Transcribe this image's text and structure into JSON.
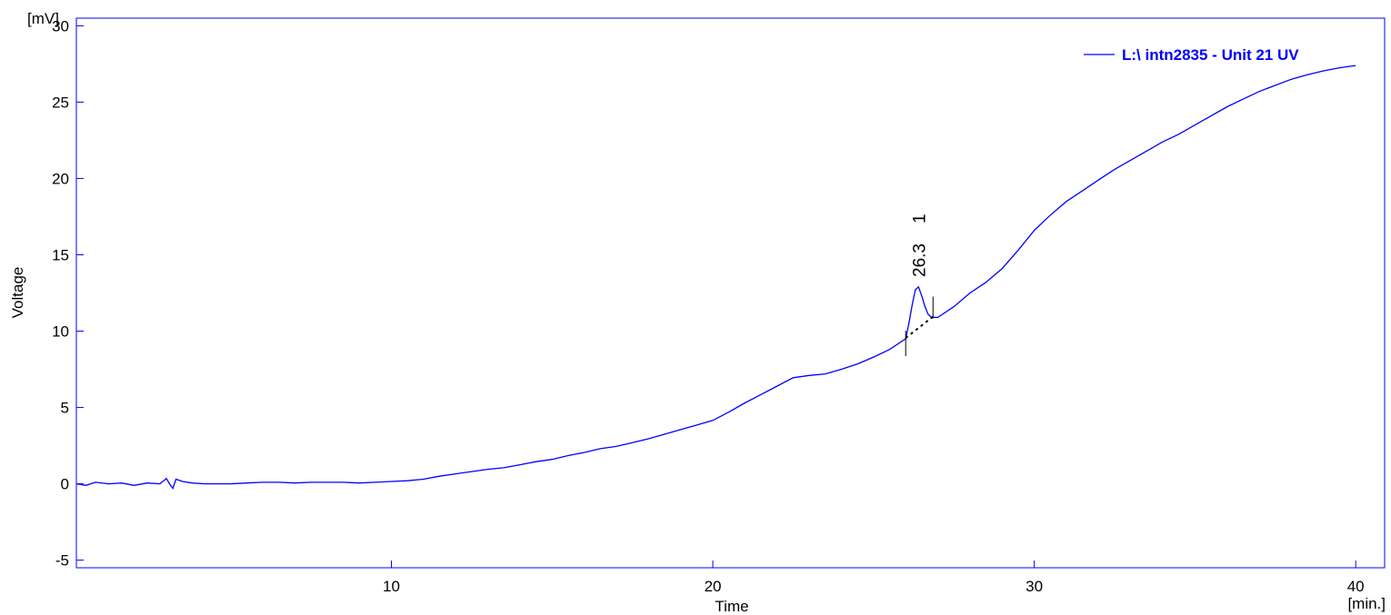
{
  "chart_data": {
    "type": "line",
    "xlabel": "Time",
    "ylabel": "Voltage",
    "x_unit": "[min.]",
    "y_unit": "[mV]",
    "xlim": [
      0.2,
      40.9
    ],
    "ylim": [
      -5.5,
      30.5
    ],
    "x_ticks": [
      10,
      20,
      30,
      40
    ],
    "y_ticks": [
      -5,
      0,
      5,
      10,
      15,
      20,
      25,
      30
    ],
    "grid": false,
    "legend_position": "top-right",
    "colors": {
      "series": "#0000ff",
      "axis": "#0000ff",
      "baseline": "#000000"
    },
    "series": [
      {
        "name": "L:\\ intn2835 - Unit 21 UV",
        "x": [
          0.2,
          0.5,
          0.8,
          1.2,
          1.6,
          2.0,
          2.4,
          2.8,
          3.0,
          3.1,
          3.2,
          3.3,
          3.5,
          3.8,
          4.2,
          4.6,
          5.0,
          5.5,
          6.0,
          6.5,
          7.0,
          7.5,
          8.0,
          8.5,
          9.0,
          9.5,
          10.0,
          10.5,
          11.0,
          11.5,
          12.0,
          12.5,
          13.0,
          13.5,
          14.0,
          14.5,
          15.0,
          15.5,
          16.0,
          16.5,
          17.0,
          17.5,
          18.0,
          18.5,
          19.0,
          19.5,
          20.0,
          20.5,
          21.0,
          21.5,
          22.0,
          22.5,
          23.0,
          23.5,
          24.0,
          24.5,
          25.0,
          25.5,
          26.0,
          26.1,
          26.2,
          26.3,
          26.4,
          26.5,
          26.6,
          26.7,
          26.8,
          27.0,
          27.5,
          28.0,
          28.5,
          29.0,
          29.5,
          30.0,
          30.5,
          31.0,
          31.5,
          32.0,
          32.5,
          33.0,
          33.5,
          34.0,
          34.5,
          35.0,
          35.5,
          36.0,
          36.5,
          37.0,
          37.5,
          38.0,
          38.5,
          39.0,
          39.5,
          40.0
        ],
        "y": [
          0.0,
          -0.1,
          0.1,
          0.0,
          0.05,
          -0.1,
          0.05,
          0.0,
          0.35,
          0.0,
          -0.3,
          0.3,
          0.15,
          0.05,
          0.0,
          0.0,
          0.0,
          0.05,
          0.1,
          0.1,
          0.05,
          0.1,
          0.1,
          0.1,
          0.05,
          0.1,
          0.15,
          0.2,
          0.3,
          0.5,
          0.65,
          0.8,
          0.95,
          1.05,
          1.25,
          1.45,
          1.6,
          1.85,
          2.05,
          2.3,
          2.45,
          2.7,
          2.95,
          3.25,
          3.55,
          3.85,
          4.15,
          4.7,
          5.3,
          5.85,
          6.4,
          6.95,
          7.1,
          7.2,
          7.5,
          7.85,
          8.3,
          8.8,
          9.5,
          10.5,
          11.7,
          12.7,
          12.9,
          12.3,
          11.6,
          11.1,
          10.9,
          10.9,
          11.6,
          12.5,
          13.2,
          14.1,
          15.3,
          16.6,
          17.6,
          18.5,
          19.2,
          19.9,
          20.6,
          21.2,
          21.8,
          22.4,
          22.9,
          23.5,
          24.1,
          24.7,
          25.2,
          25.7,
          26.1,
          26.5,
          26.8,
          27.05,
          27.25,
          27.4
        ]
      }
    ],
    "peak_annotation": {
      "time_label": "26.3",
      "number_label": "1",
      "x": 26.4,
      "start_x": 26.0,
      "end_x": 26.85,
      "baseline": [
        [
          26.0,
          9.55
        ],
        [
          26.85,
          10.95
        ]
      ]
    }
  }
}
